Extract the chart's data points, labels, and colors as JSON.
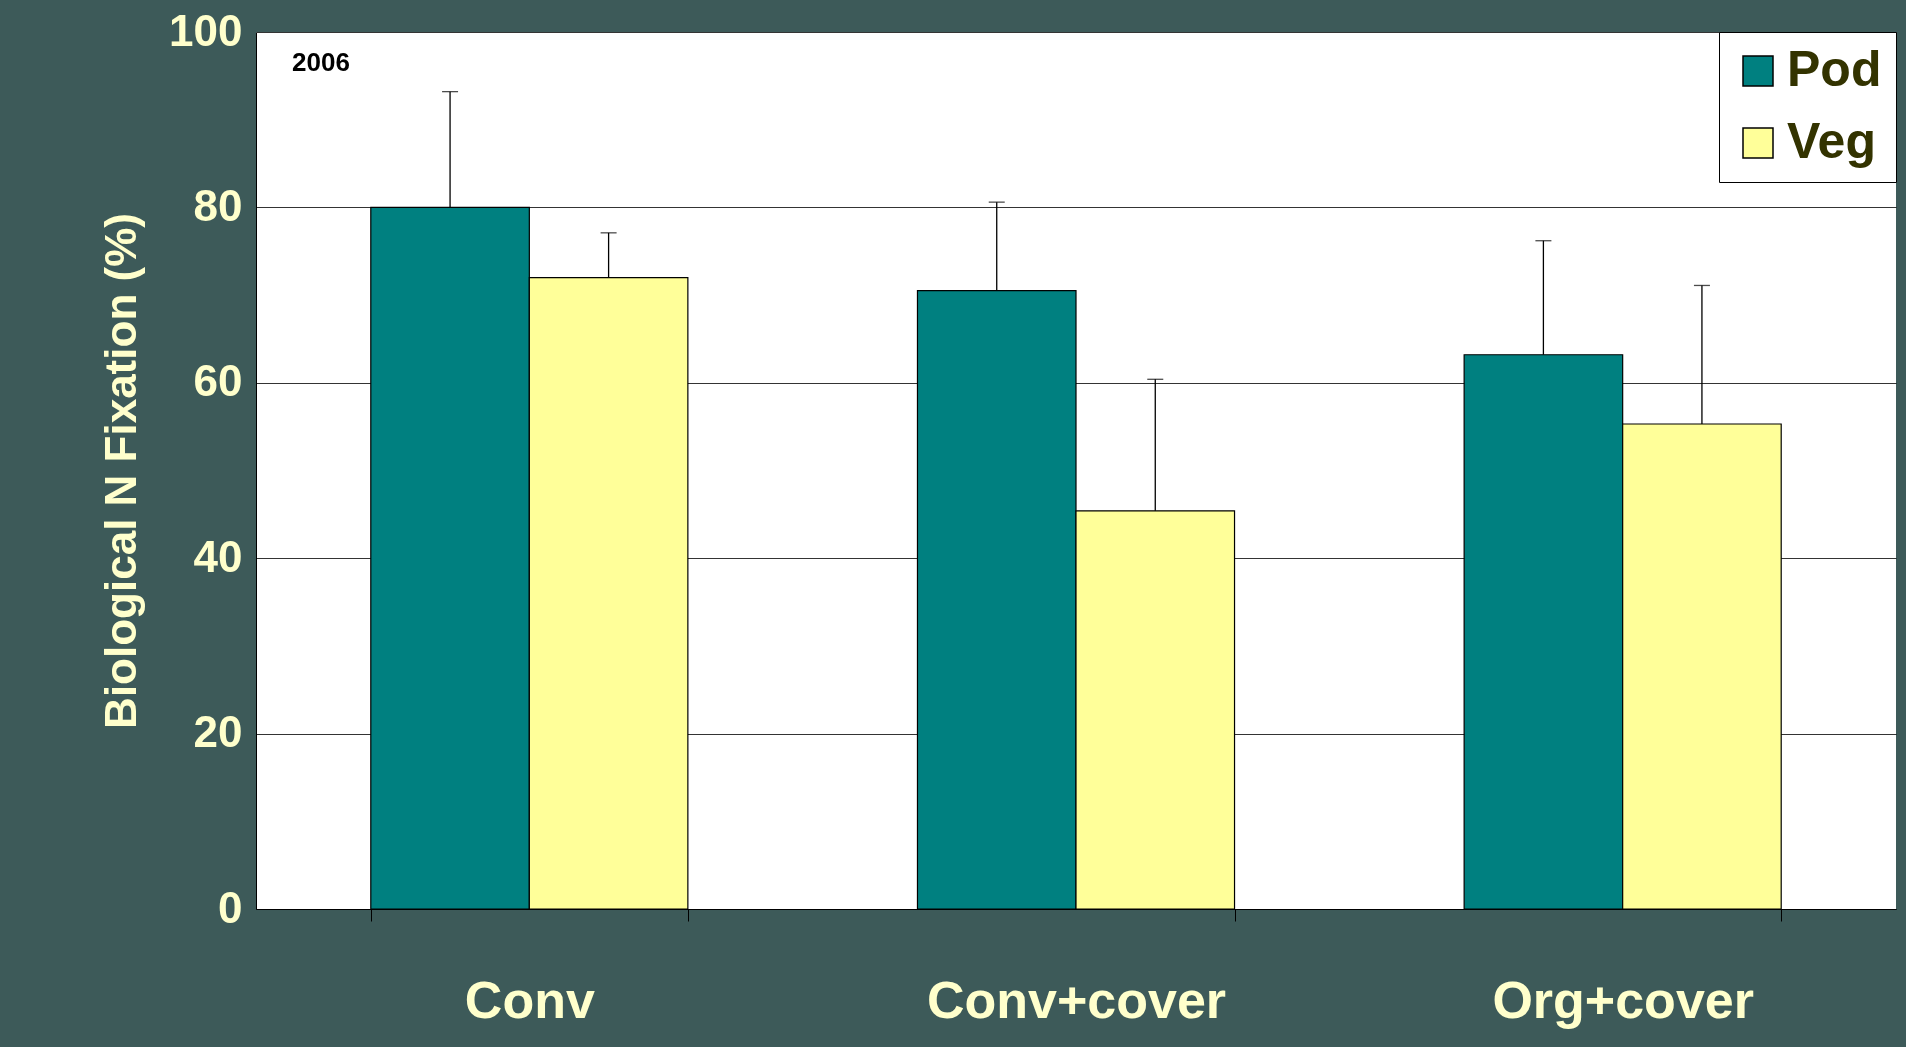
{
  "chart_data": {
    "type": "bar",
    "ylabel": "Biological N Fixation (%)",
    "categories": [
      "Conv",
      "Conv+cover",
      "Org+cover"
    ],
    "series": [
      {
        "name": "Pod",
        "color": "#008080",
        "values": [
          80,
          70.5,
          63.2
        ],
        "errors": [
          [
            80,
            93.2
          ],
          [
            70.5,
            80.6
          ],
          [
            63.2,
            76.2
          ]
        ]
      },
      {
        "name": "Veg",
        "color": "#ffff99",
        "values": [
          72,
          45.4,
          55.3
        ],
        "errors": [
          [
            72,
            77.1
          ],
          [
            45.4,
            60.4
          ],
          [
            55.3,
            71.1
          ]
        ]
      }
    ],
    "ylim": [
      0,
      100
    ],
    "yticks": [
      0,
      20,
      40,
      60,
      80,
      100
    ],
    "grid": "y",
    "legend": "top right",
    "annotations": [
      "2006"
    ]
  }
}
